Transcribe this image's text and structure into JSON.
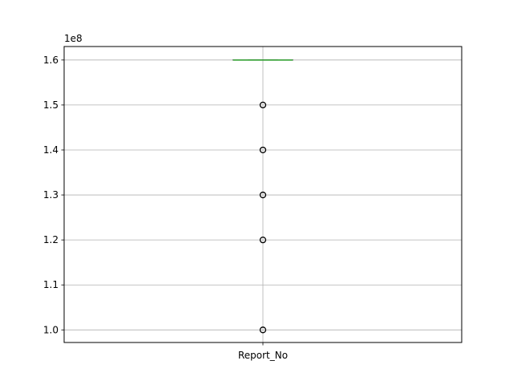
{
  "chart_data": {
    "type": "box",
    "title": "",
    "xlabel": "",
    "ylabel": "",
    "categories": [
      "Report_No"
    ],
    "y_offset_label": "1e8",
    "ylim": [
      0.972,
      1.63
    ],
    "yticks": [
      1.0,
      1.1,
      1.2,
      1.3,
      1.4,
      1.5,
      1.6
    ],
    "ytick_labels": [
      "1.0",
      "1.1",
      "1.2",
      "1.3",
      "1.4",
      "1.5",
      "1.6"
    ],
    "grid": true,
    "boxes": [
      {
        "name": "Report_No",
        "q1": 1.6,
        "median": 1.6,
        "q3": 1.6,
        "whisker_low": 1.6,
        "whisker_high": 1.6,
        "outliers": [
          1.5,
          1.4,
          1.3,
          1.2,
          1.0
        ]
      }
    ],
    "colors": {
      "box": "#000000",
      "median": "#2ca02c",
      "grid": "#b0b0b0",
      "outlier": "#000000"
    }
  }
}
